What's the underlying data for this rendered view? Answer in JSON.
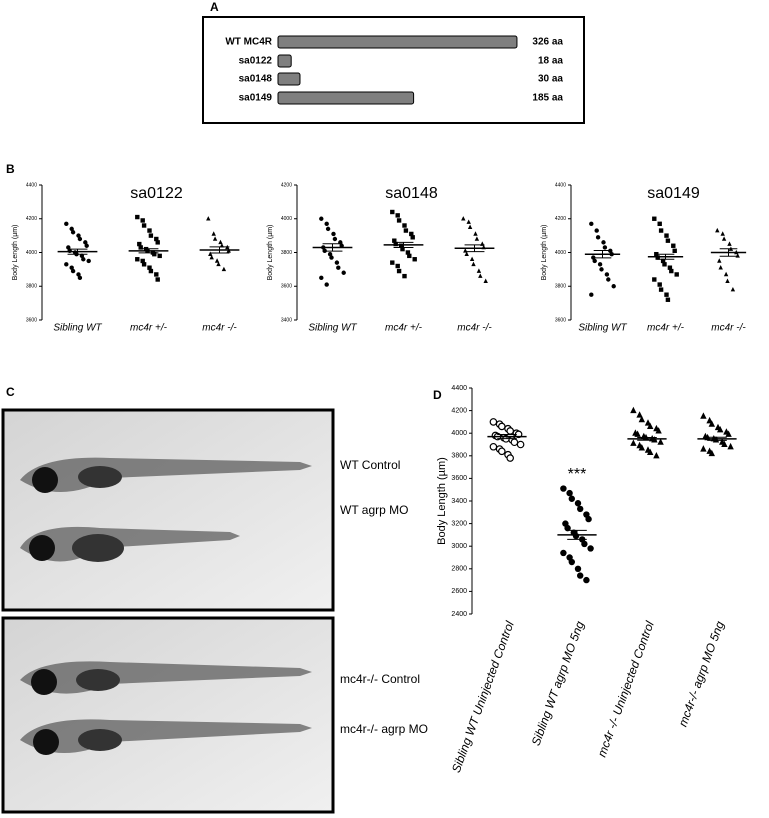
{
  "panel_labels": [
    "A",
    "B",
    "C",
    "D"
  ],
  "fish_images": {
    "labels": [
      "WT Control",
      "WT agrp MO",
      "mc4r-/- Control",
      "mc4r-/- agrp MO"
    ]
  },
  "chart_data": [
    {
      "type": "hbar",
      "categories": [
        "WT MC4R",
        "sa0122",
        "sa0148",
        "sa0149"
      ],
      "values": [
        326,
        18,
        30,
        185
      ],
      "value_labels": [
        "326 aa",
        "18 aa",
        "30 aa",
        "185 aa"
      ],
      "color": "#7f7f7f"
    },
    {
      "type": "dot",
      "title": "sa0122",
      "y_label": "Body Length (µm)",
      "ylim": [
        3600,
        4400
      ],
      "yticks": [
        3600,
        3800,
        4000,
        4200,
        4400
      ],
      "categories": [
        "Sibling WT",
        "mc4r +/-",
        "mc4r -/-"
      ],
      "groups": [
        {
          "marker": "circle",
          "values": [
            4170,
            4140,
            4120,
            4100,
            4080,
            4060,
            4040,
            4030,
            4010,
            4000,
            3990,
            3980,
            3960,
            3950,
            3930,
            3910,
            3890,
            3870,
            3850
          ],
          "mean": 4005,
          "error": 15
        },
        {
          "marker": "square",
          "values": [
            4210,
            4190,
            4160,
            4130,
            4100,
            4080,
            4060,
            4050,
            4030,
            4020,
            4010,
            4000,
            3990,
            3980,
            3960,
            3950,
            3930,
            3910,
            3890,
            3870,
            3840
          ],
          "mean": 4010,
          "error": 12
        },
        {
          "marker": "triangle",
          "values": [
            4200,
            4110,
            4080,
            4060,
            4040,
            4030,
            4010,
            3990,
            3970,
            3950,
            3930,
            3900
          ],
          "mean": 4015,
          "error": 18
        }
      ]
    },
    {
      "type": "dot",
      "title": "sa0148",
      "y_label": "Body Length (µm)",
      "ylim": [
        3400,
        4200
      ],
      "yticks": [
        3400,
        3600,
        3800,
        4000,
        4200
      ],
      "categories": [
        "Sibling WT",
        "mc4r +/-",
        "mc4r -/-"
      ],
      "groups": [
        {
          "marker": "circle",
          "values": [
            4000,
            3970,
            3940,
            3910,
            3880,
            3860,
            3840,
            3830,
            3810,
            3790,
            3770,
            3740,
            3710,
            3680,
            3650,
            3610
          ],
          "mean": 3830,
          "error": 22
        },
        {
          "marker": "square",
          "values": [
            4040,
            4020,
            3990,
            3960,
            3930,
            3910,
            3890,
            3870,
            3850,
            3840,
            3820,
            3800,
            3780,
            3760,
            3740,
            3720,
            3690,
            3660
          ],
          "mean": 3845,
          "error": 15
        },
        {
          "marker": "triangle",
          "values": [
            4000,
            3980,
            3950,
            3910,
            3880,
            3850,
            3830,
            3810,
            3790,
            3760,
            3730,
            3690,
            3660,
            3630
          ],
          "mean": 3825,
          "error": 20
        }
      ]
    },
    {
      "type": "dot",
      "title": "sa0149",
      "y_label": "Body Length (µm)",
      "ylim": [
        3600,
        4400
      ],
      "yticks": [
        3600,
        3800,
        4000,
        4200,
        4400
      ],
      "categories": [
        "Sibling WT",
        "mc4r +/-",
        "mc4r -/-"
      ],
      "groups": [
        {
          "marker": "circle",
          "values": [
            4170,
            4130,
            4090,
            4060,
            4030,
            4010,
            3990,
            3970,
            3950,
            3930,
            3900,
            3870,
            3840,
            3800,
            3750
          ],
          "mean": 3990,
          "error": 22
        },
        {
          "marker": "square",
          "values": [
            4200,
            4170,
            4130,
            4100,
            4070,
            4040,
            4010,
            3990,
            3970,
            3950,
            3930,
            3910,
            3890,
            3870,
            3840,
            3810,
            3780,
            3750,
            3720
          ],
          "mean": 3975,
          "error": 15
        },
        {
          "marker": "triangle",
          "values": [
            4130,
            4110,
            4080,
            4050,
            4020,
            4000,
            3980,
            3950,
            3910,
            3870,
            3830,
            3780
          ],
          "mean": 4000,
          "error": 22
        }
      ]
    },
    {
      "type": "dot",
      "y_label": "Body Length (µm)",
      "ylim": [
        2400,
        4400
      ],
      "yticks": [
        2400,
        2600,
        2800,
        3000,
        3200,
        3400,
        3600,
        3800,
        4000,
        4200,
        4400
      ],
      "categories": [
        "Sibling WT Uninjected Control",
        "Sibling WT agrp MO 5ng",
        "mc4r -/- Uninjected Control",
        "mc4r-/- agrp MO 5ng"
      ],
      "annotation": "***",
      "groups": [
        {
          "marker": "open-circle",
          "values": [
            4100,
            4080,
            4060,
            4040,
            4020,
            4000,
            3990,
            3980,
            3970,
            3960,
            3950,
            3940,
            3920,
            3900,
            3880,
            3860,
            3840,
            3810,
            3780
          ],
          "mean": 3970,
          "error": 18
        },
        {
          "marker": "circle",
          "values": [
            3510,
            3470,
            3420,
            3380,
            3330,
            3280,
            3240,
            3200,
            3160,
            3120,
            3090,
            3060,
            3020,
            2980,
            2940,
            2900,
            2860,
            2800,
            2740,
            2700
          ],
          "mean": 3100,
          "error": 40
        },
        {
          "marker": "triangle",
          "values": [
            4200,
            4160,
            4120,
            4090,
            4060,
            4040,
            4020,
            4000,
            3990,
            3970,
            3960,
            3950,
            3940,
            3920,
            3910,
            3890,
            3870,
            3850,
            3830,
            3800
          ],
          "mean": 3950,
          "error": 12
        },
        {
          "marker": "triangle",
          "values": [
            4150,
            4110,
            4080,
            4050,
            4030,
            4010,
            3990,
            3970,
            3960,
            3950,
            3940,
            3920,
            3900,
            3880,
            3860,
            3840,
            3820
          ],
          "mean": 3950,
          "error": 14
        }
      ]
    }
  ]
}
